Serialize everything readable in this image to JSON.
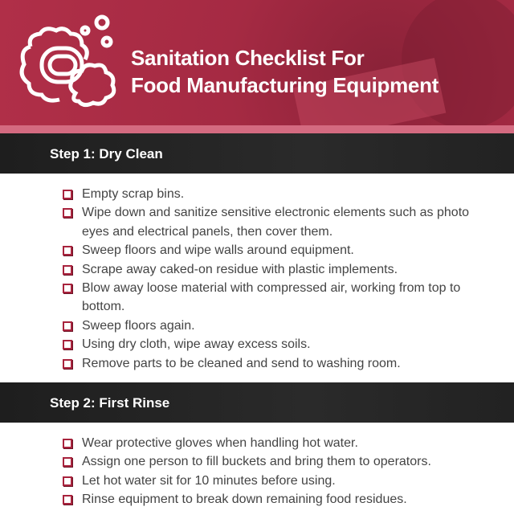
{
  "header": {
    "title_line1": "Sanitation Checklist For",
    "title_line2": "Food Manufacturing Equipment",
    "icon": "soap-bubbles-icon",
    "brand_color": "#a52a43"
  },
  "steps": [
    {
      "title": "Step 1: Dry Clean",
      "items": [
        "Empty scrap bins.",
        "Wipe down and sanitize sensitive electronic elements such as photo eyes and electrical panels, then cover them.",
        "Sweep floors and wipe walls around equipment.",
        "Scrape away caked-on residue with plastic implements.",
        "Blow away loose material with compressed air, working from top to bottom.",
        "Sweep floors again.",
        "Using dry cloth, wipe away excess soils.",
        "Remove parts to be cleaned and send to washing room."
      ]
    },
    {
      "title": "Step 2: First Rinse",
      "items": [
        "Wear protective gloves when handling hot water.",
        "Assign one person to fill buckets and bring them to operators.",
        "Let hot water sit for 10 minutes before using.",
        "Rinse equipment to break down remaining food residues."
      ]
    }
  ]
}
